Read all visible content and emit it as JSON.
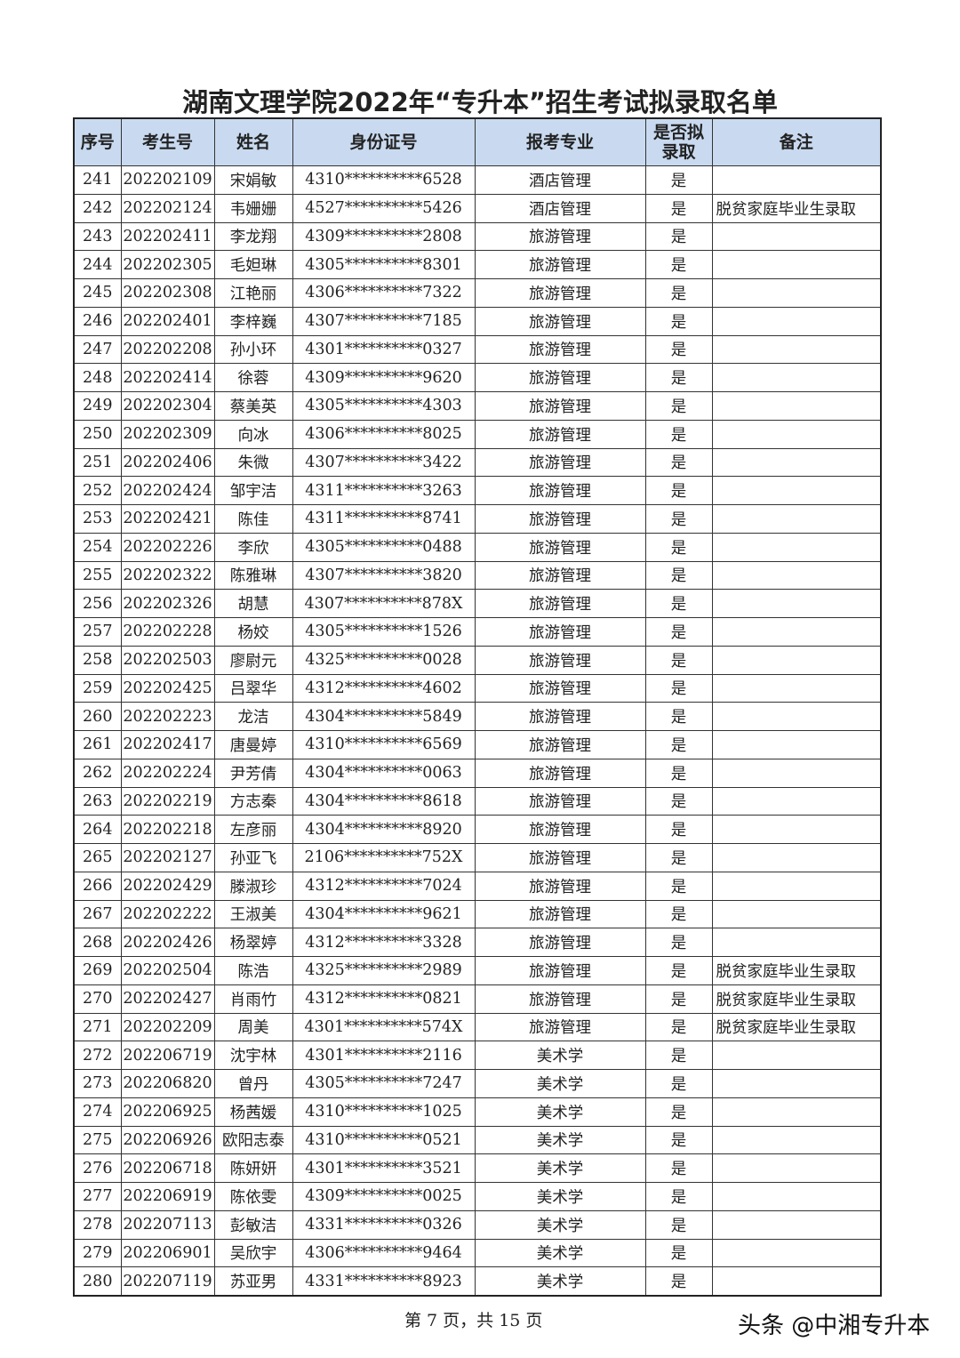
{
  "title": "湖南文理学院2022年“专升本”招生考试拟录取名单",
  "headers": [
    "序号",
    "考生号",
    "姓名",
    "身份证号",
    "报考专业",
    "是否拟录取",
    "备注"
  ],
  "rows": [
    [
      "241",
      "202202109",
      "宋娟敏",
      "4310**********6528",
      "酒店管理",
      "是",
      ""
    ],
    [
      "242",
      "202202124",
      "韦姗姗",
      "4527**********5426",
      "酒店管理",
      "是",
      "脱贫家庭毕业生录取"
    ],
    [
      "243",
      "202202411",
      "李龙翔",
      "4309**********2808",
      "旅游管理",
      "是",
      ""
    ],
    [
      "244",
      "202202305",
      "毛妲琳",
      "4305**********8301",
      "旅游管理",
      "是",
      ""
    ],
    [
      "245",
      "202202308",
      "江艳丽",
      "4306**********7322",
      "旅游管理",
      "是",
      ""
    ],
    [
      "246",
      "202202401",
      "李梓巍",
      "4307**********7185",
      "旅游管理",
      "是",
      ""
    ],
    [
      "247",
      "202202208",
      "孙小环",
      "4301**********0327",
      "旅游管理",
      "是",
      ""
    ],
    [
      "248",
      "202202414",
      "徐蓉",
      "4309**********9620",
      "旅游管理",
      "是",
      ""
    ],
    [
      "249",
      "202202304",
      "蔡美英",
      "4305**********4303",
      "旅游管理",
      "是",
      ""
    ],
    [
      "250",
      "202202309",
      "向冰",
      "4306**********8025",
      "旅游管理",
      "是",
      ""
    ],
    [
      "251",
      "202202406",
      "朱微",
      "4307**********3422",
      "旅游管理",
      "是",
      ""
    ],
    [
      "252",
      "202202424",
      "邹宇洁",
      "4311**********3263",
      "旅游管理",
      "是",
      ""
    ],
    [
      "253",
      "202202421",
      "陈佳",
      "4311**********8741",
      "旅游管理",
      "是",
      ""
    ],
    [
      "254",
      "202202226",
      "李欣",
      "4305**********0488",
      "旅游管理",
      "是",
      ""
    ],
    [
      "255",
      "202202322",
      "陈雅琳",
      "4307**********3820",
      "旅游管理",
      "是",
      ""
    ],
    [
      "256",
      "202202326",
      "胡慧",
      "4307**********878X",
      "旅游管理",
      "是",
      ""
    ],
    [
      "257",
      "202202228",
      "杨姣",
      "4305**********1526",
      "旅游管理",
      "是",
      ""
    ],
    [
      "258",
      "202202503",
      "廖尉元",
      "4325**********0028",
      "旅游管理",
      "是",
      ""
    ],
    [
      "259",
      "202202425",
      "吕翠华",
      "4312**********4602",
      "旅游管理",
      "是",
      ""
    ],
    [
      "260",
      "202202223",
      "龙洁",
      "4304**********5849",
      "旅游管理",
      "是",
      ""
    ],
    [
      "261",
      "202202417",
      "唐曼婷",
      "4310**********6569",
      "旅游管理",
      "是",
      ""
    ],
    [
      "262",
      "202202224",
      "尹芳倩",
      "4304**********0063",
      "旅游管理",
      "是",
      ""
    ],
    [
      "263",
      "202202219",
      "方志秦",
      "4304**********8618",
      "旅游管理",
      "是",
      ""
    ],
    [
      "264",
      "202202218",
      "左彦丽",
      "4304**********8920",
      "旅游管理",
      "是",
      ""
    ],
    [
      "265",
      "202202127",
      "孙亚飞",
      "2106**********752X",
      "旅游管理",
      "是",
      ""
    ],
    [
      "266",
      "202202429",
      "滕淑珍",
      "4312**********7024",
      "旅游管理",
      "是",
      ""
    ],
    [
      "267",
      "202202222",
      "王淑美",
      "4304**********9621",
      "旅游管理",
      "是",
      ""
    ],
    [
      "268",
      "202202426",
      "杨翠婷",
      "4312**********3328",
      "旅游管理",
      "是",
      ""
    ],
    [
      "269",
      "202202504",
      "陈浩",
      "4325**********2989",
      "旅游管理",
      "是",
      "脱贫家庭毕业生录取"
    ],
    [
      "270",
      "202202427",
      "肖雨竹",
      "4312**********0821",
      "旅游管理",
      "是",
      "脱贫家庭毕业生录取"
    ],
    [
      "271",
      "202202209",
      "周美",
      "4301**********574X",
      "旅游管理",
      "是",
      "脱贫家庭毕业生录取"
    ],
    [
      "272",
      "202206719",
      "沈宇林",
      "4301**********2116",
      "美术学",
      "是",
      ""
    ],
    [
      "273",
      "202206820",
      "曾丹",
      "4305**********7247",
      "美术学",
      "是",
      ""
    ],
    [
      "274",
      "202206925",
      "杨茜媛",
      "4310**********1025",
      "美术学",
      "是",
      ""
    ],
    [
      "275",
      "202206926",
      "欧阳志泰",
      "4310**********0521",
      "美术学",
      "是",
      ""
    ],
    [
      "276",
      "202206718",
      "陈妍妍",
      "4301**********3521",
      "美术学",
      "是",
      ""
    ],
    [
      "277",
      "202206919",
      "陈依雯",
      "4309**********0025",
      "美术学",
      "是",
      ""
    ],
    [
      "278",
      "202207113",
      "彭敏洁",
      "4331**********0326",
      "美术学",
      "是",
      ""
    ],
    [
      "279",
      "202206901",
      "吴欣宇",
      "4306**********9464",
      "美术学",
      "是",
      ""
    ],
    [
      "280",
      "202207119",
      "苏亚男",
      "4331**********8923",
      "美术学",
      "是",
      ""
    ]
  ],
  "footer": "第 7 页，共 15 页",
  "watermark": "头条 @中湘专升本",
  "colors": {
    "header_bg": "#c9daf0"
  }
}
